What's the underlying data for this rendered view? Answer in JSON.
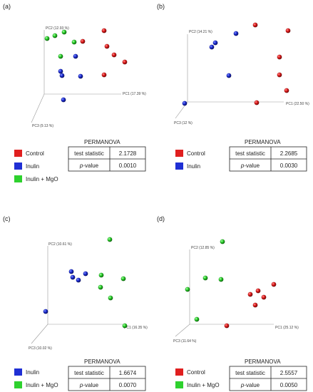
{
  "chart_data": [
    {
      "type": "scatter",
      "panel_label": "(a)",
      "projection": "3D PCoA",
      "axes": {
        "x": "PC1 (17.39 %)",
        "y": "PC2 (12.93 %)",
        "z": "PC3 (9.13 %)"
      },
      "legend": [
        {
          "name": "Control",
          "color": "#e01f1f"
        },
        {
          "name": "Inulin",
          "color": "#1f2fd4"
        },
        {
          "name": "Inulin + MgO",
          "color": "#2ed12e"
        }
      ],
      "permanova": {
        "title": "PERMANOVA",
        "rows": [
          {
            "label": "test statistic",
            "value": "2.1728"
          },
          {
            "label": "p-value",
            "value": "0.0010"
          }
        ]
      },
      "points": [
        {
          "group": "Control",
          "screen": [
            146,
            43
          ]
        },
        {
          "group": "Control",
          "screen": [
            116,
            58
          ]
        },
        {
          "group": "Control",
          "screen": [
            150,
            65
          ]
        },
        {
          "group": "Control",
          "screen": [
            160,
            77
          ]
        },
        {
          "group": "Control",
          "screen": [
            175,
            87
          ]
        },
        {
          "group": "Control",
          "screen": [
            146,
            105
          ]
        },
        {
          "group": "Inulin",
          "screen": [
            106,
            79
          ]
        },
        {
          "group": "Inulin",
          "screen": [
            85,
            100
          ]
        },
        {
          "group": "Inulin",
          "screen": [
            87,
            106
          ]
        },
        {
          "group": "Inulin",
          "screen": [
            113,
            107
          ]
        },
        {
          "group": "Inulin",
          "screen": [
            89,
            140
          ]
        },
        {
          "group": "Inulin + MgO",
          "screen": [
            66,
            54
          ]
        },
        {
          "group": "Inulin + MgO",
          "screen": [
            77,
            50
          ]
        },
        {
          "group": "Inulin + MgO",
          "screen": [
            90,
            45
          ]
        },
        {
          "group": "Inulin + MgO",
          "screen": [
            104,
            59
          ]
        },
        {
          "group": "Inulin + MgO",
          "screen": [
            85,
            79
          ]
        }
      ]
    },
    {
      "type": "scatter",
      "panel_label": "(b)",
      "projection": "3D PCoA",
      "axes": {
        "x": "PC1 (22.50 %)",
        "y": "PC2 (14.21 %)",
        "z": "PC3 (12 %)"
      },
      "legend": [
        {
          "name": "Control",
          "color": "#e01f1f"
        },
        {
          "name": "Inulin",
          "color": "#1f2fd4"
        }
      ],
      "permanova": {
        "title": "PERMANOVA",
        "rows": [
          {
            "label": "test statistic",
            "value": "2.2685"
          },
          {
            "label": "p-value",
            "value": "0.0030"
          }
        ]
      },
      "points": [
        {
          "group": "Control",
          "screen": [
            358,
            35
          ]
        },
        {
          "group": "Control",
          "screen": [
            404,
            43
          ]
        },
        {
          "group": "Control",
          "screen": [
            392,
            80
          ]
        },
        {
          "group": "Control",
          "screen": [
            392,
            105
          ]
        },
        {
          "group": "Control",
          "screen": [
            402,
            127
          ]
        },
        {
          "group": "Control",
          "screen": [
            360,
            144
          ]
        },
        {
          "group": "Inulin",
          "screen": [
            331,
            47
          ]
        },
        {
          "group": "Inulin",
          "screen": [
            302,
            60
          ]
        },
        {
          "group": "Inulin",
          "screen": [
            297,
            66
          ]
        },
        {
          "group": "Inulin",
          "screen": [
            321,
            106
          ]
        },
        {
          "group": "Inulin",
          "screen": [
            259,
            145
          ]
        }
      ]
    },
    {
      "type": "scatter",
      "panel_label": "(c)",
      "projection": "3D PCoA",
      "axes": {
        "x": "PC1 (16.35 %)",
        "y": "PC2 (10.61 %)",
        "z": "PC3 (10.02 %)"
      },
      "legend": [
        {
          "name": "Inulin",
          "color": "#1f2fd4"
        },
        {
          "name": "Inulin + MgO",
          "color": "#2ed12e"
        }
      ],
      "permanova": {
        "title": "PERMANOVA",
        "rows": [
          {
            "label": "test statistic",
            "value": "1.6674"
          },
          {
            "label": "p-value",
            "value": "0.0070"
          }
        ]
      },
      "points": [
        {
          "group": "Inulin",
          "screen": [
            100,
            381
          ]
        },
        {
          "group": "Inulin",
          "screen": [
            120,
            384
          ]
        },
        {
          "group": "Inulin",
          "screen": [
            102,
            389
          ]
        },
        {
          "group": "Inulin",
          "screen": [
            110,
            393
          ]
        },
        {
          "group": "Inulin",
          "screen": [
            64,
            437
          ]
        },
        {
          "group": "Inulin + MgO",
          "screen": [
            154,
            336
          ]
        },
        {
          "group": "Inulin + MgO",
          "screen": [
            142,
            386
          ]
        },
        {
          "group": "Inulin + MgO",
          "screen": [
            173,
            391
          ]
        },
        {
          "group": "Inulin + MgO",
          "screen": [
            141,
            403
          ]
        },
        {
          "group": "Inulin + MgO",
          "screen": [
            155,
            418
          ]
        },
        {
          "group": "Inulin + MgO",
          "screen": [
            175,
            457
          ]
        }
      ]
    },
    {
      "type": "scatter",
      "panel_label": "(d)",
      "projection": "3D PCoA",
      "axes": {
        "x": "PC1 (25.12 %)",
        "y": "PC2 (12.85 %)",
        "z": "PC3 (11.64 %)"
      },
      "legend": [
        {
          "name": "Control",
          "color": "#e01f1f"
        },
        {
          "name": "Inulin + MgO",
          "color": "#2ed12e"
        }
      ],
      "permanova": {
        "title": "PERMANOVA",
        "rows": [
          {
            "label": "test statistic",
            "value": "2.5557"
          },
          {
            "label": "p-value",
            "value": "0.0050"
          }
        ]
      },
      "points": [
        {
          "group": "Control",
          "screen": [
            384,
            399
          ]
        },
        {
          "group": "Control",
          "screen": [
            362,
            408
          ]
        },
        {
          "group": "Control",
          "screen": [
            351,
            413
          ]
        },
        {
          "group": "Control",
          "screen": [
            370,
            417
          ]
        },
        {
          "group": "Control",
          "screen": [
            358,
            428
          ]
        },
        {
          "group": "Control",
          "screen": [
            318,
            457
          ]
        },
        {
          "group": "Inulin + MgO",
          "screen": [
            312,
            339
          ]
        },
        {
          "group": "Inulin + MgO",
          "screen": [
            288,
            390
          ]
        },
        {
          "group": "Inulin + MgO",
          "screen": [
            310,
            392
          ]
        },
        {
          "group": "Inulin + MgO",
          "screen": [
            263,
            406
          ]
        },
        {
          "group": "Inulin + MgO",
          "screen": [
            276,
            448
          ]
        }
      ]
    }
  ]
}
